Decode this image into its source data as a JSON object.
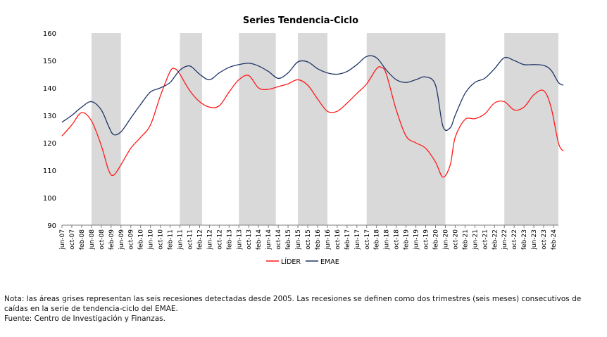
{
  "chart_data": {
    "type": "line",
    "title": "Series Tendencia-Ciclo",
    "xlabel": "",
    "ylabel": "",
    "ylim": [
      90,
      160
    ],
    "yticks": [
      90,
      100,
      110,
      120,
      130,
      140,
      150,
      160
    ],
    "x_start": "2007-06",
    "x_end": "2024-04",
    "tick_labels": [
      "jun-07",
      "oct-07",
      "feb-08",
      "jun-08",
      "oct-08",
      "feb-09",
      "jun-09",
      "oct-09",
      "feb-10",
      "jun-10",
      "oct-10",
      "feb-11",
      "jun-11",
      "oct-11",
      "feb-12",
      "jun-12",
      "oct-12",
      "feb-13",
      "jun-13",
      "oct-13",
      "feb-14",
      "jun-14",
      "oct-14",
      "feb-15",
      "jun-15",
      "oct-15",
      "feb-16",
      "jun-16",
      "oct-16",
      "feb-17",
      "jun-17",
      "oct-17",
      "feb-18",
      "jun-18",
      "oct-18",
      "feb-19",
      "jun-19",
      "oct-19",
      "feb-20",
      "jun-20",
      "oct-20",
      "feb-21",
      "jun-21",
      "oct-21",
      "feb-22",
      "jun-22",
      "oct-22",
      "feb-23",
      "jun-23",
      "oct-23",
      "feb-24"
    ],
    "recessions": [
      [
        "2008-06",
        "2009-06"
      ],
      [
        "2011-06",
        "2012-03"
      ],
      [
        "2013-06",
        "2014-09"
      ],
      [
        "2015-06",
        "2016-06"
      ],
      [
        "2017-10",
        "2020-06"
      ],
      [
        "2022-06",
        "2024-04"
      ]
    ],
    "grid": false,
    "legend_position": "bottom",
    "series": [
      {
        "name": "LÍDER",
        "color": "#ff1a1a",
        "points": [
          [
            "2007-06",
            122.5
          ],
          [
            "2007-10",
            126.5
          ],
          [
            "2008-02",
            131
          ],
          [
            "2008-06",
            128
          ],
          [
            "2008-10",
            119
          ],
          [
            "2009-01",
            110
          ],
          [
            "2009-03",
            108.2
          ],
          [
            "2009-06",
            112
          ],
          [
            "2009-10",
            118
          ],
          [
            "2010-02",
            122
          ],
          [
            "2010-06",
            126.5
          ],
          [
            "2010-10",
            137
          ],
          [
            "2011-02",
            146
          ],
          [
            "2011-04",
            147
          ],
          [
            "2011-06",
            145
          ],
          [
            "2011-10",
            139
          ],
          [
            "2012-02",
            135
          ],
          [
            "2012-06",
            133
          ],
          [
            "2012-10",
            133.5
          ],
          [
            "2013-02",
            138.5
          ],
          [
            "2013-06",
            143
          ],
          [
            "2013-10",
            144.5
          ],
          [
            "2014-02",
            140
          ],
          [
            "2014-06",
            139.5
          ],
          [
            "2014-10",
            140.5
          ],
          [
            "2015-02",
            141.5
          ],
          [
            "2015-06",
            143
          ],
          [
            "2015-10",
            141
          ],
          [
            "2016-02",
            136
          ],
          [
            "2016-06",
            131.5
          ],
          [
            "2016-10",
            131.5
          ],
          [
            "2017-02",
            134.5
          ],
          [
            "2017-06",
            138
          ],
          [
            "2017-10",
            141.5
          ],
          [
            "2018-02",
            147
          ],
          [
            "2018-04",
            147.5
          ],
          [
            "2018-06",
            145
          ],
          [
            "2018-10",
            132
          ],
          [
            "2019-02",
            122.5
          ],
          [
            "2019-06",
            120
          ],
          [
            "2019-10",
            118
          ],
          [
            "2020-02",
            113
          ],
          [
            "2020-05",
            107.5
          ],
          [
            "2020-08",
            112
          ],
          [
            "2020-10",
            122
          ],
          [
            "2021-02",
            128.5
          ],
          [
            "2021-06",
            128.8
          ],
          [
            "2021-10",
            130.5
          ],
          [
            "2022-02",
            134.5
          ],
          [
            "2022-06",
            135
          ],
          [
            "2022-10",
            132
          ],
          [
            "2023-02",
            133
          ],
          [
            "2023-06",
            137.5
          ],
          [
            "2023-10",
            139
          ],
          [
            "2024-01",
            133
          ],
          [
            "2024-04",
            120
          ],
          [
            "2024-06",
            117
          ]
        ]
      },
      {
        "name": "EMAE",
        "color": "#1f3566",
        "points": [
          [
            "2007-06",
            127.5
          ],
          [
            "2007-10",
            130
          ],
          [
            "2008-02",
            133
          ],
          [
            "2008-06",
            135
          ],
          [
            "2008-10",
            132
          ],
          [
            "2009-01",
            126
          ],
          [
            "2009-03",
            123
          ],
          [
            "2009-06",
            124
          ],
          [
            "2009-10",
            129
          ],
          [
            "2010-02",
            134
          ],
          [
            "2010-06",
            138.5
          ],
          [
            "2010-10",
            140
          ],
          [
            "2011-02",
            142
          ],
          [
            "2011-06",
            146.5
          ],
          [
            "2011-10",
            148
          ],
          [
            "2012-02",
            145
          ],
          [
            "2012-06",
            143
          ],
          [
            "2012-10",
            145.5
          ],
          [
            "2013-02",
            147.5
          ],
          [
            "2013-06",
            148.5
          ],
          [
            "2013-10",
            149
          ],
          [
            "2014-02",
            148
          ],
          [
            "2014-06",
            146
          ],
          [
            "2014-10",
            143.5
          ],
          [
            "2015-02",
            145.5
          ],
          [
            "2015-06",
            149.5
          ],
          [
            "2015-10",
            149.5
          ],
          [
            "2016-02",
            147
          ],
          [
            "2016-06",
            145.5
          ],
          [
            "2016-10",
            145
          ],
          [
            "2017-02",
            146
          ],
          [
            "2017-06",
            148.5
          ],
          [
            "2017-10",
            151.5
          ],
          [
            "2018-02",
            151
          ],
          [
            "2018-06",
            146.5
          ],
          [
            "2018-10",
            143
          ],
          [
            "2019-02",
            142
          ],
          [
            "2019-06",
            143
          ],
          [
            "2019-10",
            144
          ],
          [
            "2020-02",
            141
          ],
          [
            "2020-05",
            126
          ],
          [
            "2020-08",
            125.5
          ],
          [
            "2020-10",
            130
          ],
          [
            "2021-02",
            138
          ],
          [
            "2021-06",
            142
          ],
          [
            "2021-10",
            143.5
          ],
          [
            "2022-02",
            147
          ],
          [
            "2022-06",
            151
          ],
          [
            "2022-10",
            150
          ],
          [
            "2023-02",
            148.5
          ],
          [
            "2023-06",
            148.5
          ],
          [
            "2023-10",
            148.2
          ],
          [
            "2024-01",
            146.5
          ],
          [
            "2024-04",
            142
          ],
          [
            "2024-06",
            141
          ]
        ]
      }
    ]
  },
  "notes": {
    "nota": "Nota: las áreas grises representan las seis recesiones detectadas desde 2005. Las recesiones se definen como dos trimestres (seis meses) consecutivos de caídas en la serie de tendencia-ciclo del EMAE.",
    "fuente": "Fuente: Centro de Investigación y Finanzas."
  }
}
